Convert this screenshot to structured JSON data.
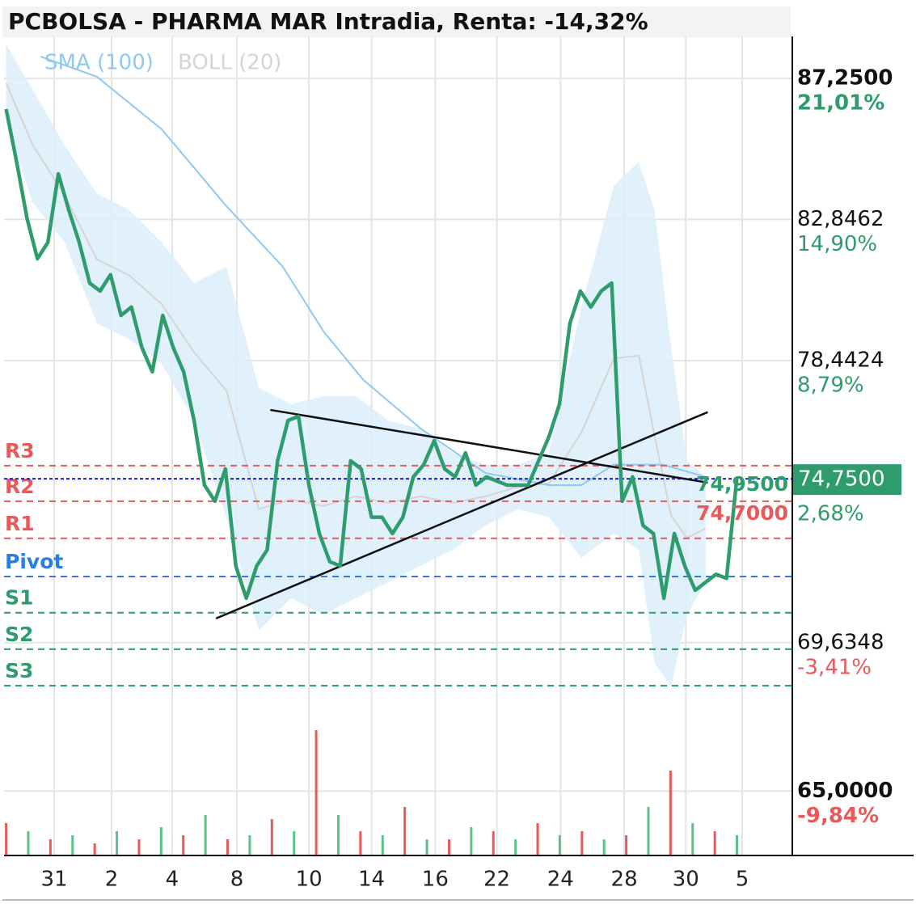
{
  "chart_data": {
    "type": "line",
    "title": "PCBOLSA - PHARMA MAR Intradia, Renta: -14,32%",
    "xlim": [
      -0.2,
      75.3
    ],
    "xticks": [
      {
        "value": 4.6,
        "label": "31"
      },
      {
        "value": 10.1,
        "label": "2"
      },
      {
        "value": 15.9,
        "label": "4"
      },
      {
        "value": 22.1,
        "label": "8"
      },
      {
        "value": 29.0,
        "label": "10"
      },
      {
        "value": 35.0,
        "label": "14"
      },
      {
        "value": 41.1,
        "label": "16"
      },
      {
        "value": 47.0,
        "label": "22"
      },
      {
        "value": 53.1,
        "label": "24"
      },
      {
        "value": 59.2,
        "label": "28"
      },
      {
        "value": 65.1,
        "label": "30"
      },
      {
        "value": 70.5,
        "label": "5"
      }
    ],
    "ylim": [
      62.99,
      88.56
    ],
    "yticks": [
      {
        "value": 87.25,
        "label": "87,2500"
      },
      {
        "value": 82.8462,
        "label": "82,8462"
      },
      {
        "value": 78.4424,
        "label": "78,4424"
      },
      {
        "value": 69.6348,
        "label": "69,6348"
      },
      {
        "value": 65,
        "label": "65,0000"
      }
    ],
    "ytick_returns": [
      "21,01%",
      "14,90%",
      "8,79%",
      "-3,41%",
      "-9,84%"
    ],
    "last": {
      "value": 74.75,
      "label": "74,7500",
      "change": "2,68%"
    },
    "annotations": [
      "74,9500",
      "74,7000"
    ],
    "grid": true,
    "price": {
      "color": "#2e9c6c",
      "values": [
        86.29,
        84.65,
        82.88,
        81.62,
        82.13,
        84.27,
        83.14,
        82.13,
        80.86,
        80.61,
        81.12,
        79.85,
        80.11,
        78.85,
        78.09,
        79.85,
        78.85,
        78.09,
        76.57,
        74.55,
        74.05,
        75.06,
        72.03,
        71.02,
        72.03,
        72.53,
        75.31,
        76.57,
        76.7,
        74.55,
        73.04,
        72.16,
        72.03,
        75.31,
        75.06,
        73.55,
        73.55,
        73.04,
        73.55,
        74.81,
        75.19,
        75.94,
        75.06,
        74.81,
        75.56,
        74.55,
        74.81,
        74.68,
        74.55,
        74.55,
        74.55,
        75.31,
        76.07,
        77.08,
        79.6,
        80.61,
        80.11,
        80.61,
        80.86,
        74.05,
        74.81,
        73.29,
        73.04,
        71.02,
        73.04,
        72.03,
        71.27,
        71.52,
        71.77,
        71.64,
        74.81
      ]
    },
    "sma": {
      "name": "SMA (100)",
      "color": "#8ec9ef",
      "x": [
        3.3,
        8.7,
        14.9,
        21.1,
        26.5,
        30.4,
        34.2,
        39.7,
        45.9,
        52.0,
        55.1,
        58.2,
        62.9,
        67.0
      ],
      "values": [
        87.93,
        87.3,
        85.66,
        83.26,
        81.37,
        79.35,
        77.84,
        76.32,
        74.93,
        74.55,
        74.55,
        75.19,
        75.19,
        74.81
      ]
    },
    "boll": {
      "name": "BOLL (20)",
      "color": "#d8d4d0",
      "band_color": "#dcefFc",
      "x": [
        0,
        2.5,
        5.6,
        8.7,
        11.8,
        14.9,
        18.0,
        21.1,
        24.2,
        27.3,
        30.4,
        33.5,
        36.6,
        39.7,
        42.8,
        45.9,
        49.0,
        52.0,
        55.1,
        58.2,
        60.6,
        62.1,
        63.7,
        65.2,
        67.0
      ],
      "upper": [
        88.31,
        86.92,
        85.16,
        83.65,
        83.14,
        82.13,
        80.86,
        81.37,
        77.59,
        77.08,
        77.33,
        77.33,
        76.57,
        76.32,
        75.56,
        75.19,
        75.19,
        75.56,
        80.11,
        83.89,
        84.65,
        83.14,
        78.85,
        75.31,
        74.81
      ],
      "middle": [
        87.1,
        85.2,
        83.6,
        81.6,
        81.1,
        80.2,
        78.7,
        77.5,
        73.8,
        74.1,
        73.9,
        74.2,
        74.0,
        74.2,
        74.0,
        74.2,
        74.5,
        74.6,
        76.2,
        78.5,
        78.6,
        76.1,
        73.6,
        72.9,
        73.2
      ],
      "lower": [
        85.91,
        83.39,
        82.13,
        79.6,
        79.1,
        78.34,
        76.57,
        73.55,
        70.01,
        71.02,
        70.51,
        71.02,
        71.52,
        72.03,
        72.53,
        73.29,
        73.8,
        73.55,
        72.28,
        73.04,
        72.53,
        69.0,
        68.25,
        70.51,
        71.52
      ]
    },
    "trendlines": [
      {
        "x": [
          20.1,
          67.2
        ],
        "values": [
          70.39,
          76.83
        ]
      },
      {
        "x": [
          25.3,
          67.2
        ],
        "values": [
          76.9,
          74.63
        ]
      }
    ],
    "levels": [
      {
        "name": "R3",
        "value": 75.16,
        "color": "#e85a5a"
      },
      {
        "name": "R2",
        "value": 74.05,
        "color": "#e85a5a"
      },
      {
        "name": "R1",
        "value": 72.89,
        "color": "#e85a5a"
      },
      {
        "name": "Pivot",
        "value": 71.7,
        "color": "#2a7de1"
      },
      {
        "name": "S1",
        "value": 70.57,
        "color": "#2e9c6c"
      },
      {
        "name": "S2",
        "value": 69.43,
        "color": "#2e9c6c"
      },
      {
        "name": "S3",
        "value": 68.29,
        "color": "#2e9c6c"
      }
    ],
    "volume_lim": [
      0,
      160
    ],
    "volume": [
      40,
      30,
      20,
      25,
      15,
      30,
      20,
      35,
      25,
      50,
      20,
      25,
      45,
      30,
      155,
      50,
      30,
      25,
      60,
      20,
      20,
      35,
      30,
      20,
      40,
      25,
      30,
      20,
      25,
      60,
      105,
      40,
      30,
      25
    ],
    "volume_colors": [
      "#e85a5a",
      "#5cc08a"
    ]
  }
}
